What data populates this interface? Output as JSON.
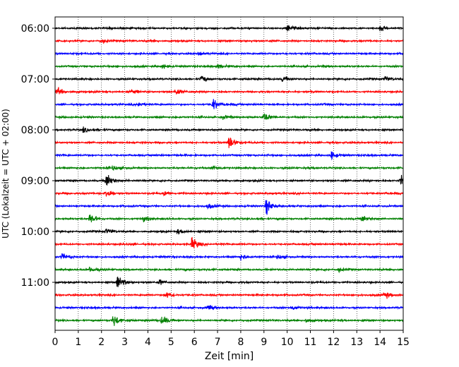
{
  "chart_data": {
    "type": "line",
    "title": "",
    "xlabel": "Zeit  [min]",
    "ylabel": "UTC (Lokalzeit = UTC + 02:00)",
    "xlim": [
      0,
      15
    ],
    "x_ticks": [
      "0",
      "1",
      "2",
      "3",
      "4",
      "5",
      "6",
      "7",
      "8",
      "9",
      "10",
      "11",
      "12",
      "13",
      "14",
      "15"
    ],
    "y_ticks": [
      "06:00",
      "07:00",
      "08:00",
      "09:00",
      "10:00",
      "11:00"
    ],
    "grid_x": true,
    "trace_colors": [
      "#000000",
      "#ff0000",
      "#0000ff",
      "#008000"
    ],
    "traces": [
      {
        "start": "06:00",
        "events": [
          [
            10.0,
            8
          ],
          [
            14.0,
            6
          ]
        ]
      },
      {
        "start": "06:15",
        "events": [
          [
            2.0,
            5
          ]
        ]
      },
      {
        "start": "06:30",
        "events": [
          [
            6.2,
            5
          ]
        ]
      },
      {
        "start": "06:45",
        "events": [
          [
            4.6,
            5
          ],
          [
            7.0,
            5
          ]
        ]
      },
      {
        "start": "07:00",
        "events": [
          [
            6.3,
            8
          ],
          [
            9.8,
            6
          ],
          [
            14.2,
            6
          ]
        ]
      },
      {
        "start": "07:15",
        "events": [
          [
            0.1,
            9
          ],
          [
            5.2,
            8
          ],
          [
            3.3,
            5
          ]
        ]
      },
      {
        "start": "07:30",
        "events": [
          [
            6.8,
            12
          ],
          [
            3.6,
            5
          ]
        ]
      },
      {
        "start": "07:45",
        "events": [
          [
            9.0,
            10
          ],
          [
            7.2,
            4
          ]
        ]
      },
      {
        "start": "08:00",
        "events": [
          [
            1.2,
            6
          ]
        ]
      },
      {
        "start": "08:15",
        "events": [
          [
            7.5,
            15
          ]
        ]
      },
      {
        "start": "08:30",
        "events": [
          [
            11.9,
            10
          ]
        ]
      },
      {
        "start": "08:45",
        "events": [
          [
            2.5,
            6
          ],
          [
            6.8,
            4
          ]
        ]
      },
      {
        "start": "09:00",
        "events": [
          [
            2.2,
            18
          ],
          [
            14.9,
            12
          ]
        ]
      },
      {
        "start": "09:15",
        "events": [
          [
            2.2,
            12
          ],
          [
            4.7,
            5
          ]
        ]
      },
      {
        "start": "09:30",
        "events": [
          [
            9.1,
            18
          ],
          [
            6.6,
            6
          ]
        ]
      },
      {
        "start": "09:45",
        "events": [
          [
            1.5,
            13
          ],
          [
            13.2,
            9
          ],
          [
            3.8,
            5
          ]
        ]
      },
      {
        "start": "10:00",
        "events": [
          [
            2.2,
            6
          ],
          [
            5.3,
            6
          ]
        ]
      },
      {
        "start": "10:15",
        "events": [
          [
            5.9,
            15
          ]
        ]
      },
      {
        "start": "10:30",
        "events": [
          [
            0.3,
            7
          ],
          [
            8.0,
            7
          ],
          [
            9.6,
            5
          ]
        ]
      },
      {
        "start": "10:45",
        "events": [
          [
            1.5,
            6
          ],
          [
            12.2,
            5
          ]
        ]
      },
      {
        "start": "11:00",
        "events": [
          [
            2.7,
            15
          ],
          [
            4.5,
            6
          ]
        ]
      },
      {
        "start": "11:15",
        "events": [
          [
            4.8,
            6
          ],
          [
            14.2,
            8
          ]
        ]
      },
      {
        "start": "11:30",
        "events": [
          [
            6.6,
            5
          ],
          [
            10.2,
            5
          ]
        ]
      },
      {
        "start": "11:45",
        "events": [
          [
            2.5,
            15
          ],
          [
            4.6,
            11
          ],
          [
            10.8,
            6
          ]
        ]
      }
    ]
  }
}
